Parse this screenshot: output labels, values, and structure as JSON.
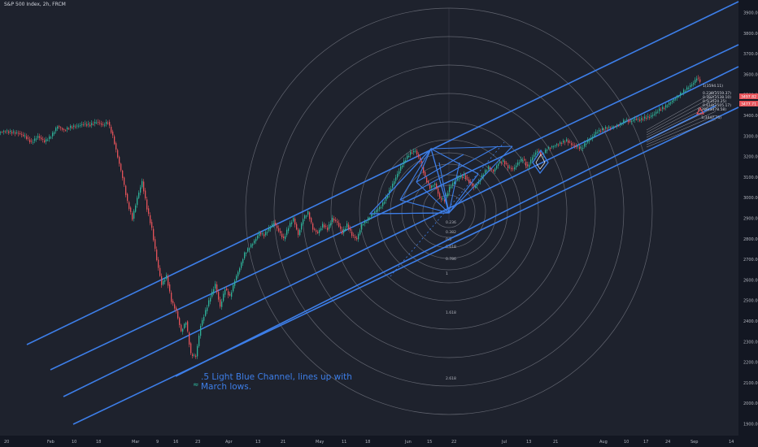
{
  "header": {
    "title": "S&P 500 Index, 2h, FRCM"
  },
  "annotation": {
    "text_line1": ".5 Light Blue Channel, lines up with",
    "text_line2": "March lows.",
    "arrow_icon": "double-chevron-up-icon",
    "arrow_glyph": "≈"
  },
  "colors": {
    "background": "#1e222d",
    "axis_bg": "#131722",
    "channel": "#3d7ee8",
    "candle_up": "#2fb39a",
    "candle_down": "#e5535a",
    "fib_circles": "#787b86",
    "price_label_red": "#e5535a"
  },
  "chart_data": {
    "type": "candlestick",
    "title": "S&P 500 Index, 2h, FRCM",
    "x_ticks": [
      "20",
      "Feb",
      "10",
      "18",
      "Mar",
      "9",
      "16",
      "23",
      "Apr",
      "13",
      "21",
      "May",
      "11",
      "18",
      "Jun",
      "15",
      "22",
      "Jul",
      "13",
      "21",
      "Aug",
      "10",
      "17",
      "24",
      "Sep",
      "14"
    ],
    "y_ticks": [
      "3900.00",
      "3800.00",
      "3700.00",
      "3600.00",
      "3500.00",
      "3400.00",
      "3300.00",
      "3200.00",
      "3100.00",
      "3000.00",
      "2900.00",
      "2800.00",
      "2700.00",
      "2600.00",
      "2500.00",
      "2400.00",
      "2300.00",
      "2200.00",
      "2100.00",
      "2000.00",
      "1900.00"
    ],
    "ylim": [
      1880,
      3960
    ],
    "price_path": [
      [
        0,
        3320
      ],
      [
        8,
        3325
      ],
      [
        16,
        3320
      ],
      [
        24,
        3315
      ],
      [
        32,
        3300
      ],
      [
        40,
        3270
      ],
      [
        48,
        3300
      ],
      [
        56,
        3275
      ],
      [
        64,
        3300
      ],
      [
        72,
        3350
      ],
      [
        80,
        3330
      ],
      [
        88,
        3345
      ],
      [
        96,
        3350
      ],
      [
        104,
        3360
      ],
      [
        112,
        3355
      ],
      [
        120,
        3370
      ],
      [
        128,
        3355
      ],
      [
        134,
        3370
      ],
      [
        140,
        3300
      ],
      [
        146,
        3200
      ],
      [
        152,
        3100
      ],
      [
        158,
        2980
      ],
      [
        164,
        2900
      ],
      [
        170,
        3000
      ],
      [
        176,
        3080
      ],
      [
        182,
        2950
      ],
      [
        188,
        2850
      ],
      [
        194,
        2700
      ],
      [
        200,
        2580
      ],
      [
        206,
        2620
      ],
      [
        212,
        2500
      ],
      [
        218,
        2450
      ],
      [
        224,
        2350
      ],
      [
        230,
        2400
      ],
      [
        236,
        2240
      ],
      [
        242,
        2230
      ],
      [
        248,
        2380
      ],
      [
        254,
        2450
      ],
      [
        260,
        2520
      ],
      [
        266,
        2580
      ],
      [
        272,
        2470
      ],
      [
        278,
        2560
      ],
      [
        284,
        2520
      ],
      [
        290,
        2600
      ],
      [
        296,
        2660
      ],
      [
        302,
        2730
      ],
      [
        308,
        2760
      ],
      [
        314,
        2790
      ],
      [
        320,
        2830
      ],
      [
        326,
        2820
      ],
      [
        332,
        2850
      ],
      [
        338,
        2880
      ],
      [
        344,
        2840
      ],
      [
        350,
        2800
      ],
      [
        356,
        2860
      ],
      [
        362,
        2900
      ],
      [
        368,
        2820
      ],
      [
        374,
        2900
      ],
      [
        380,
        2930
      ],
      [
        386,
        2850
      ],
      [
        392,
        2830
      ],
      [
        398,
        2870
      ],
      [
        404,
        2850
      ],
      [
        410,
        2900
      ],
      [
        416,
        2880
      ],
      [
        422,
        2830
      ],
      [
        428,
        2870
      ],
      [
        434,
        2820
      ],
      [
        440,
        2800
      ],
      [
        446,
        2870
      ],
      [
        452,
        2890
      ],
      [
        458,
        2920
      ],
      [
        464,
        2940
      ],
      [
        470,
        2960
      ],
      [
        476,
        3000
      ],
      [
        482,
        3050
      ],
      [
        488,
        3100
      ],
      [
        494,
        3150
      ],
      [
        500,
        3190
      ],
      [
        506,
        3220
      ],
      [
        512,
        3230
      ],
      [
        518,
        3180
      ],
      [
        524,
        3100
      ],
      [
        530,
        3050
      ],
      [
        536,
        3070
      ],
      [
        542,
        3000
      ],
      [
        548,
        2990
      ],
      [
        554,
        3050
      ],
      [
        560,
        3080
      ],
      [
        566,
        3100
      ],
      [
        572,
        3110
      ],
      [
        578,
        3080
      ],
      [
        584,
        3050
      ],
      [
        590,
        3080
      ],
      [
        596,
        3120
      ],
      [
        602,
        3150
      ],
      [
        608,
        3130
      ],
      [
        614,
        3170
      ],
      [
        620,
        3180
      ],
      [
        626,
        3150
      ],
      [
        632,
        3140
      ],
      [
        638,
        3170
      ],
      [
        644,
        3190
      ],
      [
        650,
        3150
      ],
      [
        656,
        3200
      ],
      [
        662,
        3230
      ],
      [
        668,
        3210
      ],
      [
        674,
        3240
      ],
      [
        680,
        3250
      ],
      [
        686,
        3260
      ],
      [
        692,
        3270
      ],
      [
        698,
        3280
      ],
      [
        704,
        3260
      ],
      [
        710,
        3250
      ],
      [
        716,
        3240
      ],
      [
        722,
        3270
      ],
      [
        728,
        3290
      ],
      [
        734,
        3320
      ],
      [
        740,
        3330
      ],
      [
        746,
        3340
      ],
      [
        752,
        3345
      ],
      [
        758,
        3350
      ],
      [
        764,
        3360
      ],
      [
        770,
        3380
      ],
      [
        776,
        3370
      ],
      [
        782,
        3385
      ],
      [
        788,
        3380
      ],
      [
        794,
        3390
      ],
      [
        800,
        3395
      ],
      [
        806,
        3410
      ],
      [
        812,
        3430
      ],
      [
        818,
        3440
      ],
      [
        824,
        3460
      ],
      [
        830,
        3480
      ],
      [
        836,
        3500
      ],
      [
        842,
        3520
      ],
      [
        848,
        3540
      ],
      [
        854,
        3560
      ],
      [
        858,
        3585
      ],
      [
        862,
        3570
      ]
    ],
    "price_labels": [
      "1(3594.11)",
      "0.236(3559.37)",
      "0.382(3538.10)",
      "0.5(3520.25)",
      "0.618(3505.17)",
      "0.786(3478.58)",
      "1(3447.75)"
    ],
    "last_price_labels": [
      "3497.82",
      "3477.71"
    ],
    "fib_circle_labels": [
      "0.236",
      "0.382",
      "0.5",
      "0.618",
      "0.786",
      "1",
      "1.618",
      "2.618"
    ],
    "grid": false,
    "legend": "none"
  }
}
